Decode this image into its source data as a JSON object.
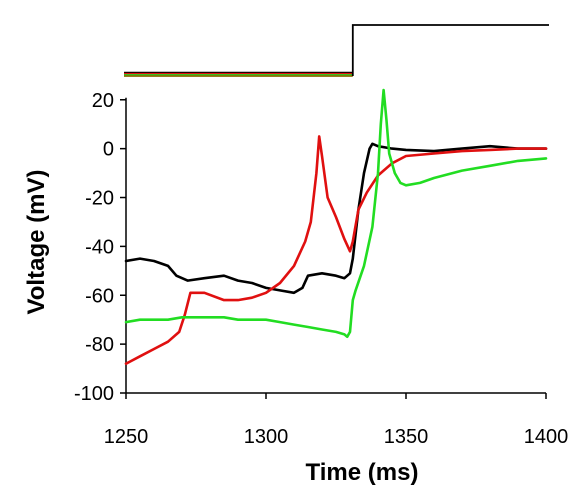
{
  "chart_data": {
    "type": "line",
    "title": "",
    "xlabel": "Time (ms)",
    "ylabel": "Voltage (mV)",
    "xlim": [
      1250,
      1400
    ],
    "ylim": [
      -100,
      25
    ],
    "xticks": [
      1250,
      1300,
      1350,
      1400
    ],
    "yticks": [
      -100,
      -80,
      -60,
      -40,
      -20,
      0,
      20
    ],
    "grid": false,
    "legend": "none",
    "stimulus_trace": {
      "color": "#000000",
      "step_time": 1331,
      "traces_before_step": [
        "#000000",
        "#e01010",
        "#22dd22",
        "#8a6a00"
      ]
    },
    "series": [
      {
        "color": "#000000",
        "x": [
          1250,
          1255,
          1260,
          1265,
          1268,
          1272,
          1278,
          1285,
          1290,
          1295,
          1300,
          1305,
          1310,
          1313,
          1315,
          1320,
          1325,
          1328,
          1330,
          1331,
          1333,
          1335,
          1337,
          1338,
          1340,
          1345,
          1350,
          1360,
          1370,
          1380,
          1390,
          1400
        ],
        "y": [
          -46,
          -45,
          -46,
          -48,
          -52,
          -54,
          -53,
          -52,
          -54,
          -55,
          -57,
          -58,
          -59,
          -57,
          -52,
          -51,
          -52,
          -53,
          -51,
          -45,
          -25,
          -10,
          0,
          2,
          1,
          0,
          -0.5,
          -1,
          0,
          1,
          0,
          0
        ]
      },
      {
        "color": "#e01010",
        "x": [
          1250,
          1255,
          1260,
          1265,
          1269,
          1271,
          1273,
          1278,
          1285,
          1290,
          1295,
          1300,
          1305,
          1310,
          1314,
          1316,
          1318,
          1319,
          1320,
          1322,
          1325,
          1328,
          1330,
          1331,
          1333,
          1336,
          1340,
          1345,
          1350,
          1360,
          1370,
          1380,
          1390,
          1400
        ],
        "y": [
          -88,
          -85,
          -82,
          -79,
          -75,
          -68,
          -59,
          -59,
          -62,
          -62,
          -61,
          -59,
          -55,
          -48,
          -38,
          -30,
          -10,
          5,
          -3,
          -20,
          -28,
          -37,
          -42,
          -38,
          -25,
          -18,
          -11,
          -6,
          -3,
          -2,
          -1,
          -0.5,
          0,
          0
        ]
      },
      {
        "color": "#22dd22",
        "x": [
          1250,
          1255,
          1260,
          1265,
          1270,
          1275,
          1280,
          1285,
          1290,
          1295,
          1300,
          1305,
          1310,
          1315,
          1320,
          1325,
          1328,
          1329,
          1330,
          1331,
          1332,
          1335,
          1338,
          1340,
          1341,
          1342,
          1343,
          1344,
          1346,
          1348,
          1350,
          1355,
          1360,
          1370,
          1380,
          1390,
          1400
        ],
        "y": [
          -71,
          -70,
          -70,
          -70,
          -69,
          -69,
          -69,
          -69,
          -70,
          -70,
          -70,
          -71,
          -72,
          -73,
          -74,
          -75,
          -76,
          -77,
          -75,
          -62,
          -58,
          -48,
          -32,
          -10,
          10,
          24,
          12,
          -2,
          -10,
          -14,
          -15,
          -14,
          -12,
          -9,
          -7,
          -5,
          -4
        ]
      }
    ]
  }
}
